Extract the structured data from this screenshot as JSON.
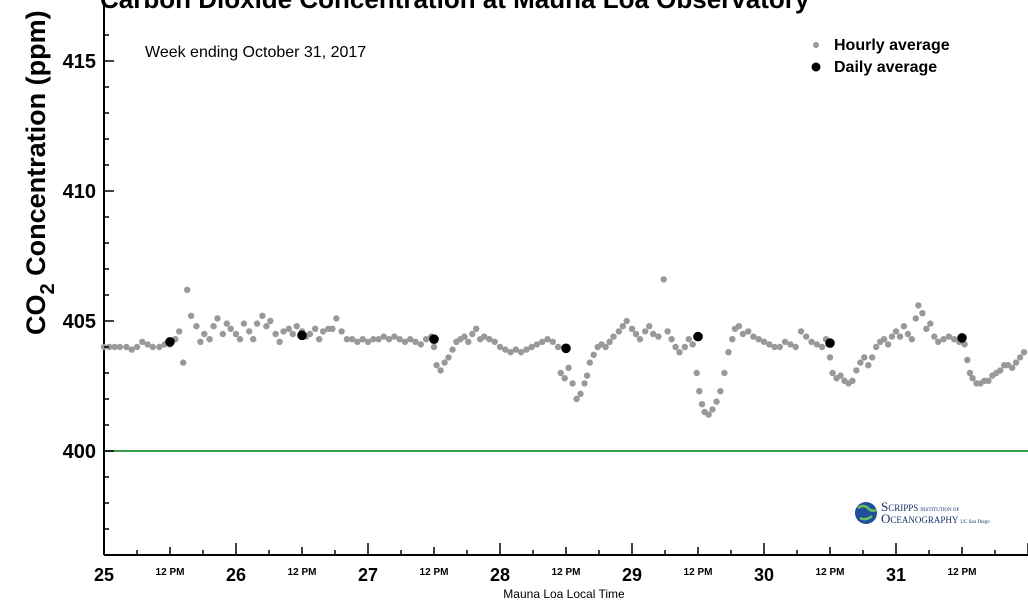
{
  "chart_data": {
    "type": "scatter",
    "title": "Carbon Dioxide Concentration at Mauna Loa Observatory",
    "annotation": "Week ending October 31, 2017",
    "ylabel_main": "CO",
    "ylabel_sub": "2",
    "ylabel_rest": " Concentration (ppm)",
    "xlabel": "Mauna Loa Local Time",
    "ylim": [
      396,
      417
    ],
    "xlim": [
      0,
      7
    ],
    "yticks": [
      400,
      405,
      410,
      415
    ],
    "xticks_major": [
      {
        "x": 0,
        "label": "25"
      },
      {
        "x": 1,
        "label": "26"
      },
      {
        "x": 2,
        "label": "27"
      },
      {
        "x": 3,
        "label": "28"
      },
      {
        "x": 4,
        "label": "29"
      },
      {
        "x": 5,
        "label": "30"
      },
      {
        "x": 6,
        "label": "31"
      }
    ],
    "xticks_minor": [
      {
        "x": 0.5,
        "label": "12 PM"
      },
      {
        "x": 1.5,
        "label": "12 PM"
      },
      {
        "x": 2.5,
        "label": "12 PM"
      },
      {
        "x": 3.5,
        "label": "12 PM"
      },
      {
        "x": 4.5,
        "label": "12 PM"
      },
      {
        "x": 5.5,
        "label": "12 PM"
      },
      {
        "x": 6.5,
        "label": "12 PM"
      }
    ],
    "reference_line": {
      "y": 400,
      "color": "#3aa04a"
    },
    "legend": [
      {
        "name": "Hourly average",
        "color": "#999999",
        "size": "small"
      },
      {
        "name": "Daily average",
        "color": "#000000",
        "size": "large"
      }
    ],
    "legend_position": "top-right",
    "grid": false,
    "series": [
      {
        "name": "Hourly average",
        "color": "#999999",
        "points": [
          [
            0.0,
            404.0
          ],
          [
            0.04,
            404.0
          ],
          [
            0.08,
            404.0
          ],
          [
            0.12,
            404.0
          ],
          [
            0.17,
            404.0
          ],
          [
            0.21,
            403.9
          ],
          [
            0.25,
            404.0
          ],
          [
            0.29,
            404.2
          ],
          [
            0.33,
            404.1
          ],
          [
            0.37,
            404.0
          ],
          [
            0.42,
            404.0
          ],
          [
            0.46,
            404.1
          ],
          [
            0.5,
            404.1
          ],
          [
            0.54,
            404.3
          ],
          [
            0.57,
            404.6
          ],
          [
            0.6,
            403.4
          ],
          [
            0.63,
            406.2
          ],
          [
            0.66,
            405.2
          ],
          [
            0.7,
            404.8
          ],
          [
            0.73,
            404.2
          ],
          [
            0.76,
            404.5
          ],
          [
            0.8,
            404.3
          ],
          [
            0.83,
            404.8
          ],
          [
            0.86,
            405.1
          ],
          [
            0.9,
            404.5
          ],
          [
            0.93,
            404.9
          ],
          [
            0.96,
            404.7
          ],
          [
            1.0,
            404.5
          ],
          [
            1.03,
            404.3
          ],
          [
            1.06,
            404.9
          ],
          [
            1.1,
            404.6
          ],
          [
            1.13,
            404.3
          ],
          [
            1.16,
            404.9
          ],
          [
            1.2,
            405.2
          ],
          [
            1.23,
            404.8
          ],
          [
            1.26,
            405.0
          ],
          [
            1.3,
            404.5
          ],
          [
            1.33,
            404.2
          ],
          [
            1.36,
            404.6
          ],
          [
            1.4,
            404.7
          ],
          [
            1.43,
            404.5
          ],
          [
            1.46,
            404.8
          ],
          [
            1.5,
            404.6
          ],
          [
            1.53,
            404.4
          ],
          [
            1.56,
            404.5
          ],
          [
            1.6,
            404.7
          ],
          [
            1.63,
            404.3
          ],
          [
            1.66,
            404.6
          ],
          [
            1.7,
            404.7
          ],
          [
            1.73,
            404.7
          ],
          [
            1.76,
            405.1
          ],
          [
            1.8,
            404.6
          ],
          [
            1.84,
            404.3
          ],
          [
            1.88,
            404.3
          ],
          [
            1.92,
            404.2
          ],
          [
            1.96,
            404.3
          ],
          [
            2.0,
            404.2
          ],
          [
            2.04,
            404.3
          ],
          [
            2.08,
            404.3
          ],
          [
            2.12,
            404.4
          ],
          [
            2.16,
            404.3
          ],
          [
            2.2,
            404.4
          ],
          [
            2.24,
            404.3
          ],
          [
            2.28,
            404.2
          ],
          [
            2.32,
            404.3
          ],
          [
            2.36,
            404.2
          ],
          [
            2.4,
            404.1
          ],
          [
            2.44,
            404.3
          ],
          [
            2.48,
            404.4
          ],
          [
            2.5,
            404.0
          ],
          [
            2.52,
            403.3
          ],
          [
            2.55,
            403.1
          ],
          [
            2.58,
            403.4
          ],
          [
            2.61,
            403.6
          ],
          [
            2.64,
            403.9
          ],
          [
            2.67,
            404.2
          ],
          [
            2.7,
            404.3
          ],
          [
            2.73,
            404.4
          ],
          [
            2.76,
            404.2
          ],
          [
            2.79,
            404.5
          ],
          [
            2.82,
            404.7
          ],
          [
            2.85,
            404.3
          ],
          [
            2.88,
            404.4
          ],
          [
            2.92,
            404.3
          ],
          [
            2.96,
            404.2
          ],
          [
            3.0,
            404.0
          ],
          [
            3.04,
            403.9
          ],
          [
            3.08,
            403.8
          ],
          [
            3.12,
            403.9
          ],
          [
            3.16,
            403.8
          ],
          [
            3.2,
            403.9
          ],
          [
            3.24,
            404.0
          ],
          [
            3.28,
            404.1
          ],
          [
            3.32,
            404.2
          ],
          [
            3.36,
            404.3
          ],
          [
            3.4,
            404.2
          ],
          [
            3.44,
            404.0
          ],
          [
            3.46,
            403.0
          ],
          [
            3.49,
            402.8
          ],
          [
            3.52,
            403.2
          ],
          [
            3.55,
            402.6
          ],
          [
            3.58,
            402.0
          ],
          [
            3.61,
            402.2
          ],
          [
            3.64,
            402.6
          ],
          [
            3.66,
            402.9
          ],
          [
            3.68,
            403.4
          ],
          [
            3.71,
            403.7
          ],
          [
            3.74,
            404.0
          ],
          [
            3.77,
            404.1
          ],
          [
            3.8,
            404.0
          ],
          [
            3.83,
            404.2
          ],
          [
            3.86,
            404.4
          ],
          [
            3.9,
            404.6
          ],
          [
            3.93,
            404.8
          ],
          [
            3.96,
            405.0
          ],
          [
            4.0,
            404.7
          ],
          [
            4.03,
            404.5
          ],
          [
            4.06,
            404.3
          ],
          [
            4.1,
            404.6
          ],
          [
            4.13,
            404.8
          ],
          [
            4.16,
            404.5
          ],
          [
            4.2,
            404.4
          ],
          [
            4.24,
            406.6
          ],
          [
            4.27,
            404.6
          ],
          [
            4.3,
            404.3
          ],
          [
            4.33,
            404.0
          ],
          [
            4.36,
            403.8
          ],
          [
            4.4,
            404.0
          ],
          [
            4.43,
            404.3
          ],
          [
            4.46,
            404.1
          ],
          [
            4.49,
            403.0
          ],
          [
            4.51,
            402.3
          ],
          [
            4.53,
            401.8
          ],
          [
            4.55,
            401.5
          ],
          [
            4.58,
            401.4
          ],
          [
            4.61,
            401.6
          ],
          [
            4.64,
            401.9
          ],
          [
            4.67,
            402.3
          ],
          [
            4.7,
            403.0
          ],
          [
            4.73,
            403.8
          ],
          [
            4.76,
            404.3
          ],
          [
            4.78,
            404.7
          ],
          [
            4.81,
            404.8
          ],
          [
            4.84,
            404.5
          ],
          [
            4.88,
            404.6
          ],
          [
            4.92,
            404.4
          ],
          [
            4.96,
            404.3
          ],
          [
            5.0,
            404.2
          ],
          [
            5.04,
            404.1
          ],
          [
            5.08,
            404.0
          ],
          [
            5.12,
            404.0
          ],
          [
            5.16,
            404.2
          ],
          [
            5.2,
            404.1
          ],
          [
            5.24,
            404.0
          ],
          [
            5.28,
            404.6
          ],
          [
            5.32,
            404.4
          ],
          [
            5.36,
            404.2
          ],
          [
            5.4,
            404.1
          ],
          [
            5.44,
            404.0
          ],
          [
            5.47,
            404.3
          ],
          [
            5.5,
            403.6
          ],
          [
            5.52,
            403.0
          ],
          [
            5.55,
            402.8
          ],
          [
            5.58,
            402.9
          ],
          [
            5.61,
            402.7
          ],
          [
            5.64,
            402.6
          ],
          [
            5.67,
            402.7
          ],
          [
            5.7,
            403.1
          ],
          [
            5.73,
            403.4
          ],
          [
            5.76,
            403.6
          ],
          [
            5.79,
            403.3
          ],
          [
            5.82,
            403.6
          ],
          [
            5.85,
            404.0
          ],
          [
            5.88,
            404.2
          ],
          [
            5.91,
            404.3
          ],
          [
            5.94,
            404.1
          ],
          [
            5.97,
            404.4
          ],
          [
            6.0,
            404.6
          ],
          [
            6.03,
            404.4
          ],
          [
            6.06,
            404.8
          ],
          [
            6.09,
            404.5
          ],
          [
            6.12,
            404.3
          ],
          [
            6.15,
            405.1
          ],
          [
            6.17,
            405.6
          ],
          [
            6.2,
            405.3
          ],
          [
            6.23,
            404.7
          ],
          [
            6.26,
            404.9
          ],
          [
            6.29,
            404.4
          ],
          [
            6.32,
            404.2
          ],
          [
            6.36,
            404.3
          ],
          [
            6.4,
            404.4
          ],
          [
            6.44,
            404.3
          ],
          [
            6.48,
            404.2
          ],
          [
            6.52,
            404.1
          ],
          [
            6.54,
            403.5
          ],
          [
            6.56,
            403.0
          ],
          [
            6.58,
            402.8
          ],
          [
            6.61,
            402.6
          ],
          [
            6.64,
            402.6
          ],
          [
            6.67,
            402.7
          ],
          [
            6.7,
            402.7
          ],
          [
            6.73,
            402.9
          ],
          [
            6.76,
            403.0
          ],
          [
            6.79,
            403.1
          ],
          [
            6.82,
            403.3
          ],
          [
            6.85,
            403.3
          ],
          [
            6.88,
            403.2
          ],
          [
            6.91,
            403.4
          ],
          [
            6.94,
            403.6
          ],
          [
            6.97,
            403.8
          ]
        ]
      },
      {
        "name": "Daily average",
        "color": "#000000",
        "points": [
          [
            0.5,
            404.2
          ],
          [
            1.5,
            404.45
          ],
          [
            2.5,
            404.3
          ],
          [
            3.5,
            403.95
          ],
          [
            4.5,
            404.4
          ],
          [
            5.5,
            404.15
          ],
          [
            6.5,
            404.35
          ]
        ]
      }
    ]
  },
  "logo": {
    "line1_big": "S",
    "line1_rest": "CRIPPS",
    "line1_small": "INSTITUTION OF",
    "line2_big": "O",
    "line2_rest": "CEANOGRAPHY",
    "line2_small": "UC San Diego"
  }
}
